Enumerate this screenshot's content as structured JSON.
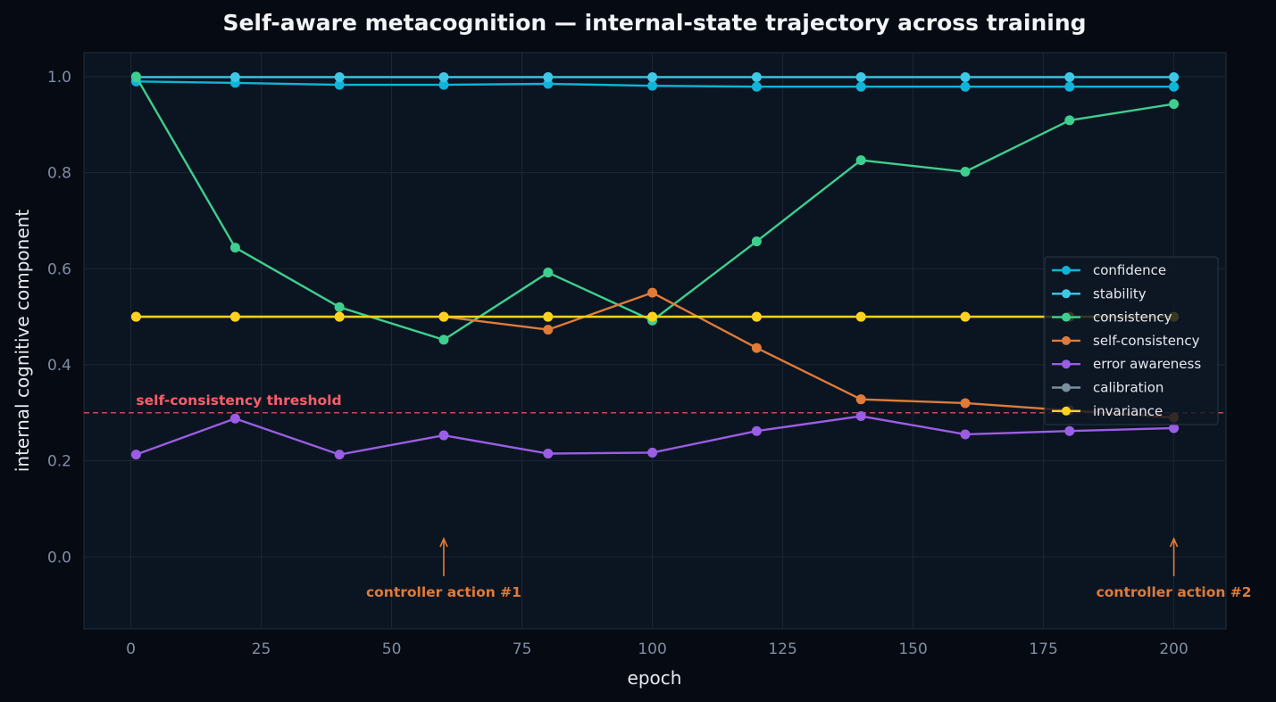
{
  "chart_data": {
    "type": "line",
    "title": "Self-aware metacognition — internal-state trajectory across training",
    "xlabel": "epoch",
    "ylabel": "internal cognitive component",
    "xlim": [
      -9,
      210
    ],
    "ylim": [
      -0.15,
      1.05
    ],
    "x_ticks": [
      0,
      25,
      50,
      75,
      100,
      125,
      150,
      175,
      200
    ],
    "y_ticks": [
      0.0,
      0.2,
      0.4,
      0.6,
      0.8,
      1.0
    ],
    "grid": true,
    "legend_position": "center-right",
    "x": [
      1,
      20,
      40,
      60,
      80,
      100,
      120,
      140,
      160,
      180,
      200
    ],
    "series": [
      {
        "name": "confidence",
        "color": "#0fb4d8",
        "values": [
          0.99,
          0.987,
          0.983,
          0.983,
          0.985,
          0.981,
          0.979,
          0.979,
          0.979,
          0.979,
          0.979
        ]
      },
      {
        "name": "stability",
        "color": "#3ec8e8",
        "values": [
          0.999,
          0.999,
          0.999,
          0.999,
          0.999,
          0.999,
          0.999,
          0.999,
          0.999,
          0.999,
          0.999
        ]
      },
      {
        "name": "consistency",
        "color": "#3ecf8e",
        "values": [
          1.0,
          0.644,
          0.52,
          0.452,
          0.592,
          0.492,
          0.657,
          0.826,
          0.802,
          0.909,
          0.943
        ]
      },
      {
        "name": "self-consistency",
        "color": "#e07b39",
        "values": [
          0.5,
          0.5,
          0.5,
          0.5,
          0.473,
          0.55,
          0.435,
          0.328,
          0.32,
          0.305,
          0.29
        ]
      },
      {
        "name": "error awareness",
        "color": "#9b5de5",
        "values": [
          0.213,
          0.288,
          0.213,
          0.253,
          0.215,
          0.217,
          0.262,
          0.293,
          0.255,
          0.262,
          0.268
        ]
      },
      {
        "name": "calibration",
        "color": "#7b8fa1",
        "values": [
          0.5,
          0.5,
          0.5,
          0.5,
          0.5,
          0.5,
          0.5,
          0.5,
          0.5,
          0.5,
          0.5
        ]
      },
      {
        "name": "invariance",
        "color": "#ffd21f",
        "values": [
          0.5,
          0.5,
          0.5,
          0.5,
          0.5,
          0.5,
          0.5,
          0.5,
          0.5,
          0.5,
          0.5
        ]
      }
    ],
    "threshold": {
      "value": 0.3,
      "label": "self-consistency threshold",
      "color": "#ff5c6a"
    },
    "annotations": [
      {
        "text": "controller action #1",
        "x": 60,
        "color": "#e07b39"
      },
      {
        "text": "controller action #2",
        "x": 200,
        "color": "#e07b39"
      }
    ]
  }
}
